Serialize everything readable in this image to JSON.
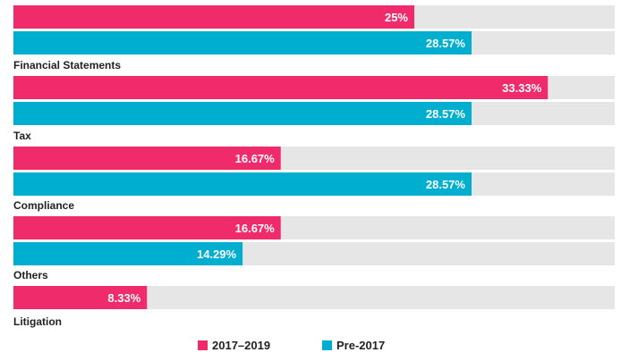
{
  "chart_data": {
    "type": "bar",
    "orientation": "horizontal",
    "xlim": [
      0,
      37.5
    ],
    "grid": false,
    "legend_position": "bottom",
    "categories": [
      "Financial Statements",
      "Tax",
      "Compliance",
      "Others",
      "Litigation"
    ],
    "series": [
      {
        "name": "2017–2019",
        "color": "#ef2b6b",
        "values": [
          25,
          33.33,
          16.67,
          16.67,
          8.33
        ],
        "labels": [
          "25%",
          "33.33%",
          "16.67%",
          "16.67%",
          "8.33%"
        ]
      },
      {
        "name": "Pre-2017",
        "color": "#00afd0",
        "values": [
          28.57,
          28.57,
          28.57,
          14.29,
          null
        ],
        "labels": [
          "28.57%",
          "28.57%",
          "28.57%",
          "14.29%",
          null
        ]
      }
    ],
    "track_color": "#e6e6e6"
  }
}
